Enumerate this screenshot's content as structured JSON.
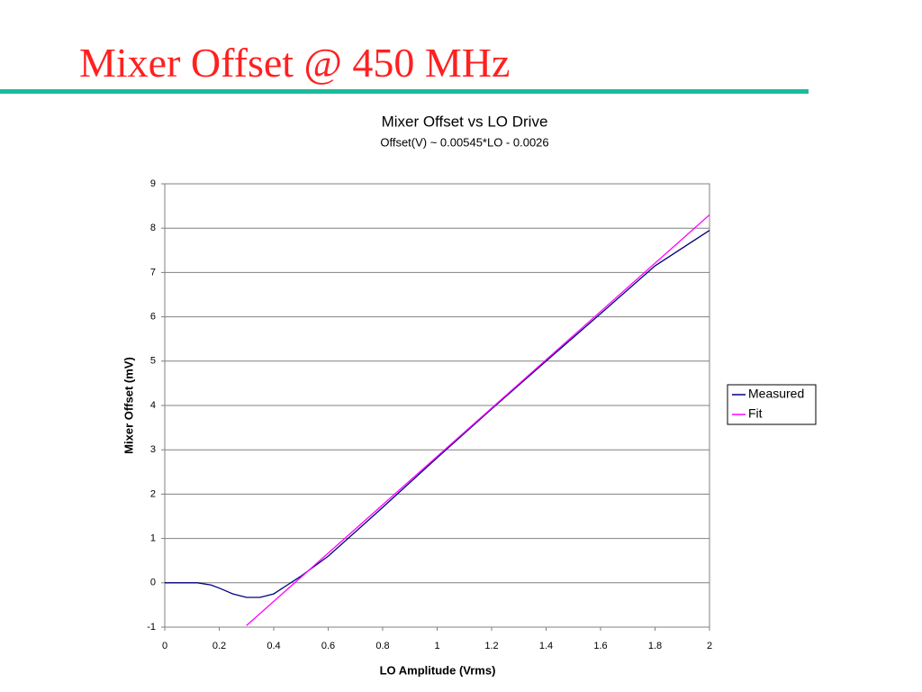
{
  "slide_title": "Mixer Offset @ 450 MHz",
  "chart_data": {
    "type": "line",
    "title": "Mixer Offset vs LO Drive",
    "subtitle": "Offset(V) ~ 0.00545*LO - 0.0026",
    "x_label": "LO Amplitude (Vrms)",
    "y_label": "Mixer Offset (mV)",
    "x": [
      0,
      0.05,
      0.1,
      0.12,
      0.17,
      0.2,
      0.25,
      0.3,
      0.35,
      0.4,
      0.45,
      0.5,
      0.6,
      0.7,
      0.8,
      1.0,
      1.2,
      1.4,
      1.6,
      1.8,
      2.0
    ],
    "series": [
      {
        "name": "Measured",
        "color": "#000080",
        "values": [
          0,
          0,
          0,
          0,
          -0.05,
          -0.12,
          -0.25,
          -0.33,
          -0.33,
          -0.25,
          -0.05,
          0.15,
          0.6,
          1.15,
          1.7,
          2.82,
          3.92,
          5.0,
          6.07,
          7.15,
          7.95
        ]
      },
      {
        "name": "Fit",
        "color": "#ff00ff",
        "x": [
          0.3,
          2.0
        ],
        "values": [
          -0.965,
          8.3
        ]
      }
    ],
    "xlim": [
      0,
      2
    ],
    "ylim": [
      -1,
      9
    ],
    "xticks": [
      0,
      0.2,
      0.4,
      0.6,
      0.8,
      1,
      1.2,
      1.4,
      1.6,
      1.8,
      2
    ],
    "yticks": [
      -1,
      0,
      1,
      2,
      3,
      4,
      5,
      6,
      7,
      8,
      9
    ],
    "grid": true,
    "legend": "right"
  }
}
